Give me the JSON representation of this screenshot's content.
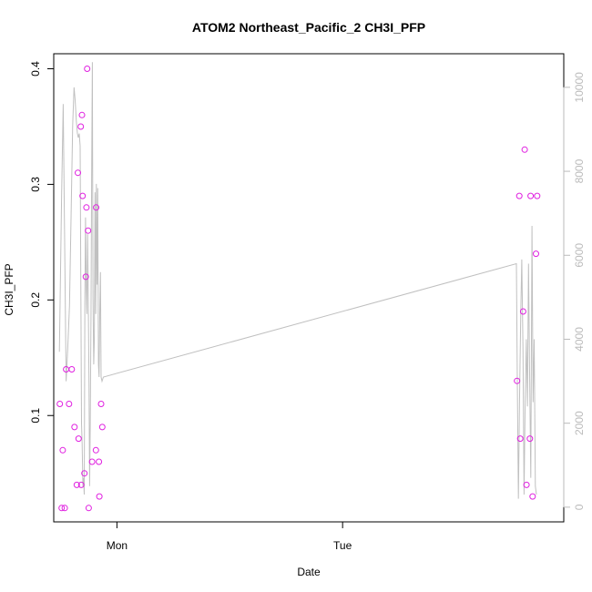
{
  "chart_data": {
    "type": "scatter",
    "title": "ATOM2 Northeast_Pacific_2 CH3I_PFP",
    "xlabel": "Date",
    "ylabel": "CH3I_PFP",
    "x_ticks": [
      {
        "label": "Mon",
        "value": 0.0
      },
      {
        "label": "Tue",
        "value": 1.0
      }
    ],
    "x_unit": "days from Monday 00:00",
    "xlim": [
      -0.28,
      1.98
    ],
    "ylim": [
      0.008,
      0.413
    ],
    "y_ticks": [
      0.1,
      0.2,
      0.3,
      0.4
    ],
    "y2lim": [
      -350,
      10800
    ],
    "y2_ticks": [
      0,
      2000,
      4000,
      6000,
      8000,
      10000
    ],
    "colors": {
      "points": "#e020e0",
      "line": "#c0c0c0",
      "frame": "#000000",
      "right_axis": "#bbbbbb"
    },
    "series": [
      {
        "kind": "points",
        "x": [
          -0.253,
          -0.245,
          -0.24,
          -0.231,
          -0.225,
          -0.212,
          -0.2,
          -0.188,
          -0.178,
          -0.173,
          -0.17,
          -0.16,
          -0.158,
          -0.155,
          -0.152,
          -0.144,
          -0.138,
          -0.135,
          -0.132,
          -0.128,
          -0.125,
          -0.11,
          -0.093,
          -0.092,
          -0.08,
          -0.078,
          -0.07,
          -0.065
        ],
        "y": [
          0.11,
          0.02,
          0.07,
          0.02,
          0.14,
          0.11,
          0.14,
          0.09,
          0.04,
          0.31,
          0.08,
          0.35,
          0.04,
          0.36,
          0.29,
          0.05,
          0.22,
          0.28,
          0.4,
          0.26,
          0.02,
          0.06,
          0.07,
          0.28,
          0.06,
          0.03,
          0.11,
          0.09
        ]
      },
      {
        "kind": "points",
        "x": [
          1.773,
          1.783,
          1.787,
          1.8,
          1.807,
          1.815,
          1.83,
          1.833,
          1.842,
          1.857,
          1.862
        ],
        "y": [
          0.13,
          0.29,
          0.08,
          0.19,
          0.33,
          0.04,
          0.08,
          0.29,
          0.03,
          0.24,
          0.29
        ]
      },
      {
        "kind": "line",
        "axis": "right",
        "x": [
          -0.255,
          -0.245,
          -0.238,
          -0.232,
          -0.225,
          -0.218,
          -0.21,
          -0.203,
          -0.196,
          -0.19,
          -0.185,
          -0.18,
          -0.175,
          -0.171,
          -0.167,
          -0.163,
          -0.16,
          -0.157,
          -0.154,
          -0.151,
          -0.148,
          -0.145,
          -0.142,
          -0.139,
          -0.136,
          -0.133,
          -0.13,
          -0.127,
          -0.124,
          -0.121,
          -0.118,
          -0.115,
          -0.112,
          -0.109,
          -0.106,
          -0.103,
          -0.1,
          -0.097,
          -0.094,
          -0.091,
          -0.088,
          -0.085,
          -0.082,
          -0.079,
          -0.076,
          -0.073,
          -0.07,
          -0.066,
          -0.06,
          1.77,
          1.774,
          1.779,
          1.784,
          1.789,
          1.794,
          1.799,
          1.804,
          1.809,
          1.814,
          1.819,
          1.824,
          1.829,
          1.834,
          1.839,
          1.844,
          1.849,
          1.854,
          1.859
        ],
        "y": [
          3700,
          7500,
          9600,
          6500,
          3000,
          3800,
          4800,
          7000,
          9100,
          10000,
          9700,
          9200,
          8900,
          8800,
          8900,
          8600,
          5500,
          2000,
          1500,
          500,
          700,
          300,
          5000,
          6900,
          5200,
          4600,
          6500,
          5000,
          3000,
          500,
          2000,
          4500,
          7800,
          10600,
          5000,
          3400,
          4000,
          7500,
          4600,
          7700,
          5300,
          7600,
          3400,
          3100,
          4600,
          5600,
          3100,
          3000,
          3100,
          5800,
          3000,
          200,
          2500,
          4500,
          5900,
          3800,
          300,
          2500,
          4000,
          2400,
          5800,
          3000,
          700,
          6700,
          2500,
          4000,
          500,
          300
        ]
      }
    ]
  }
}
